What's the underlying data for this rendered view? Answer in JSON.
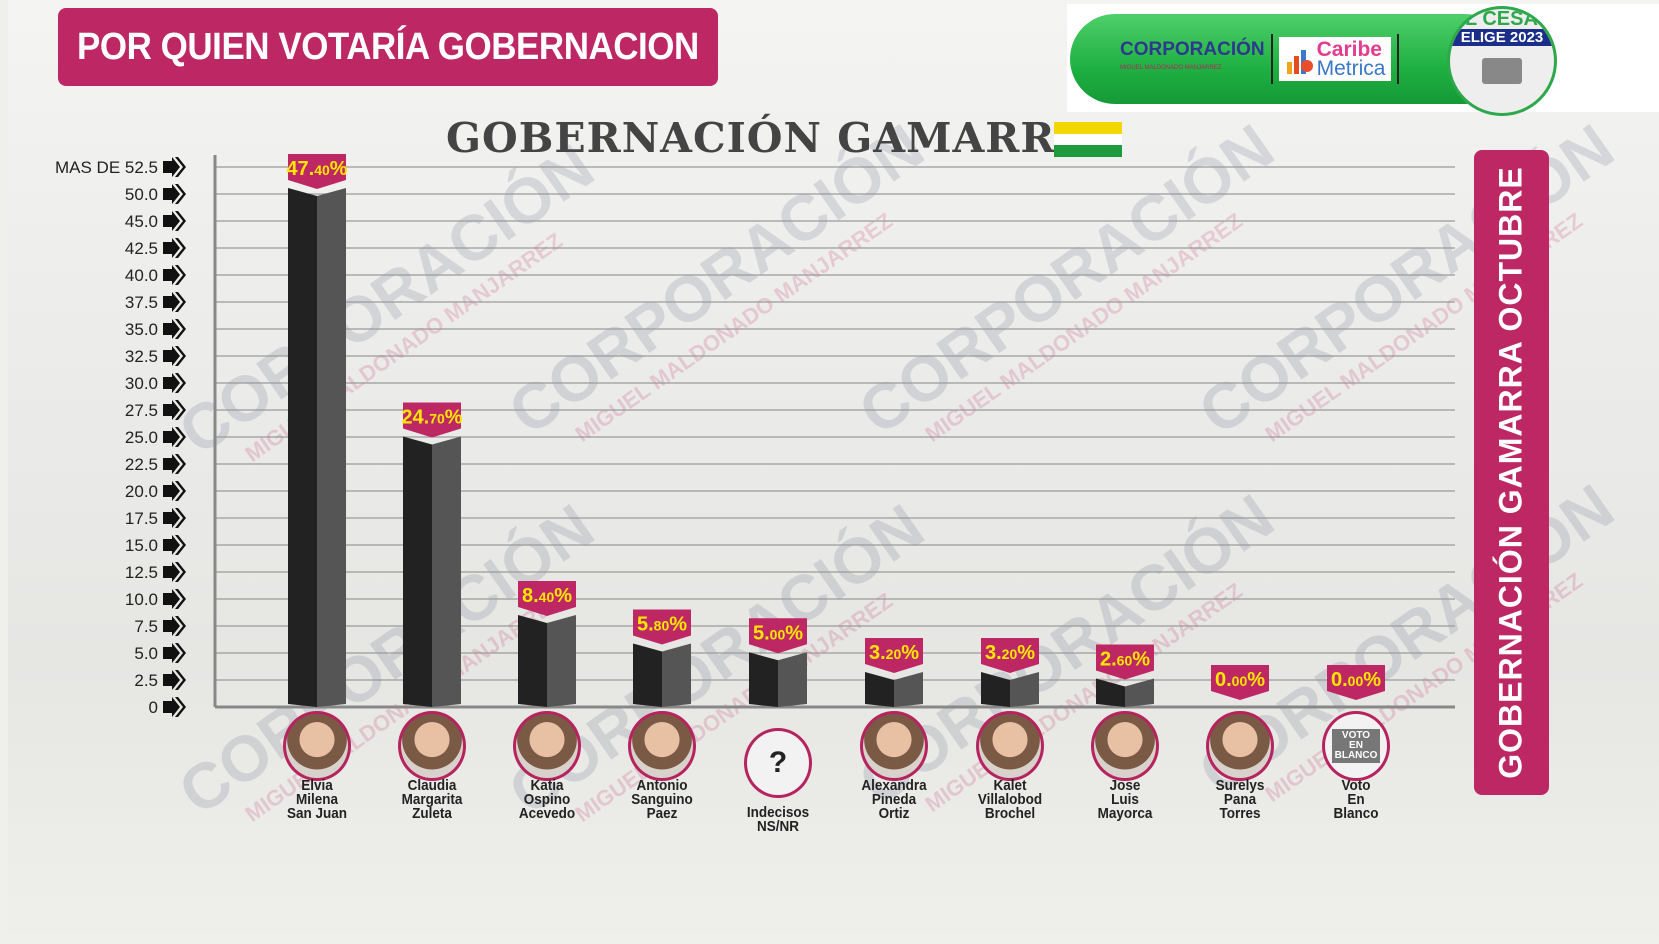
{
  "header": {
    "title": "POR QUIEN VOTARÍA GOBERNACION"
  },
  "logos": {
    "corporacion": "CORPORACIÓN",
    "corporacion_sub": "MIGUEL MALDONADO MANJARREZ",
    "caribe1": "Caribe",
    "caribe2": "Metrica",
    "seal_top": "EL CESAR",
    "seal_main": "ELIGE 2023"
  },
  "side_banner": "GOBERNACIÓN GAMARRA OCTUBRE",
  "watermark": {
    "main": "CORPORACIÓN",
    "sub": "MIGUEL MALDONADO MANJARREZ"
  },
  "colors": {
    "accent": "#bd2764",
    "label_text": "#ffe600",
    "bar_dark": "#222222",
    "bar_light": "#555555",
    "flag_yellow": "#f4d600",
    "flag_green": "#1f9a3c"
  },
  "chart_data": {
    "type": "bar",
    "title": "GOBERNACIÓN GAMARRA",
    "ytick_labels": [
      "0",
      "2.5",
      "5.0",
      "7.5",
      "10.0",
      "12.5",
      "15.0",
      "17.5",
      "20.0",
      "22.5",
      "25.0",
      "27.5",
      "30.0",
      "32.5",
      "35.0",
      "37.5",
      "40.0",
      "42.5",
      "45.0",
      "50.0",
      "MAS DE 52.5"
    ],
    "grid": true,
    "categories": [
      "Elvia Milena San Juan",
      "Claudia Margarita Zuleta",
      "Katia Ospino Acevedo",
      "Antonio Sanguino Paez",
      "Indecisos NS/NR",
      "Alexandra Pineda Ortiz",
      "Kalet Villalobod Brochel",
      "Jose Luis Mayorca",
      "Surelys Pana Torres",
      "Voto En Blanco"
    ],
    "name_lines": [
      [
        "Elvia",
        "Milena",
        "San Juan"
      ],
      [
        "Claudia",
        "Margarita",
        "Zuleta"
      ],
      [
        "Katia",
        "Ospino",
        "Acevedo"
      ],
      [
        "Antonio",
        "Sanguino",
        "Paez"
      ],
      [
        "Indecisos",
        "NS/NR"
      ],
      [
        "Alexandra",
        "Pineda",
        "Ortiz"
      ],
      [
        "Kalet",
        "Villalobod",
        "Brochel"
      ],
      [
        "Jose",
        "Luis",
        "Mayorca"
      ],
      [
        "Surelys",
        "Pana",
        "Torres"
      ],
      [
        "Voto",
        "En",
        "Blanco"
      ]
    ],
    "values": [
      47.4,
      24.7,
      8.4,
      5.8,
      5.0,
      3.2,
      3.2,
      2.6,
      0.0,
      0.0
    ],
    "labels": [
      [
        "47.",
        "40",
        "%"
      ],
      [
        "24.",
        "70",
        "%"
      ],
      [
        "8.",
        "40",
        "%"
      ],
      [
        "5.",
        "80",
        "%"
      ],
      [
        "5.",
        "00",
        "%"
      ],
      [
        "3.",
        "20",
        "%"
      ],
      [
        "3.",
        "20",
        "%"
      ],
      [
        "2.",
        "60",
        "%"
      ],
      [
        "0.",
        "00",
        "%"
      ],
      [
        "0.",
        "00",
        "%"
      ]
    ],
    "icons": [
      "photo",
      "photo",
      "photo",
      "photo",
      "question-ballot-icon",
      "photo",
      "photo",
      "photo",
      "photo",
      "blank-vote-icon"
    ],
    "blank_vote_text": "VOTO EN BLANCO",
    "question_mark": "?"
  }
}
